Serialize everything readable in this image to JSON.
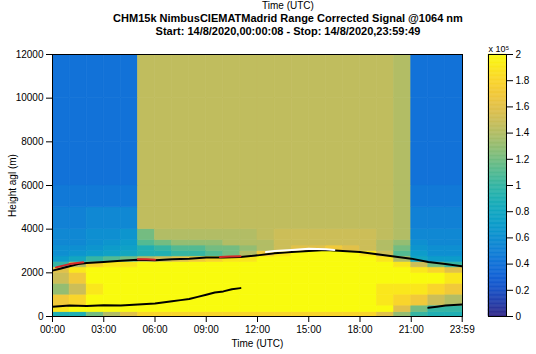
{
  "chart_data": {
    "type": "heatmap",
    "header": "Time (UTC)",
    "title": "CHM15k NimbusCIEMATMadrid Range Corrected Signal @1064 nm",
    "subtitle": "Start: 14/8/2020,00:00:08 - Stop: 14/8/2020,23:59:49",
    "x_label": "Time (UTC)",
    "y_label": "Height agl (m)",
    "xlim": [
      0,
      24
    ],
    "xticks": [
      {
        "value": 0,
        "label": "00:00"
      },
      {
        "value": 3,
        "label": "03:00"
      },
      {
        "value": 6,
        "label": "06:00"
      },
      {
        "value": 9,
        "label": "09:00"
      },
      {
        "value": 12,
        "label": "12:00"
      },
      {
        "value": 15,
        "label": "15:00"
      },
      {
        "value": 18,
        "label": "18:00"
      },
      {
        "value": 21,
        "label": "21:00"
      },
      {
        "value": 23.983,
        "label": "23:59"
      }
    ],
    "ylim": [
      0,
      12000
    ],
    "yticks": [
      0,
      2000,
      4000,
      6000,
      8000,
      10000,
      12000
    ],
    "grid": false,
    "x_edges": [
      0,
      1,
      2,
      3,
      4,
      5,
      6,
      7,
      8,
      9,
      10,
      11,
      12,
      13,
      14,
      15,
      16,
      17,
      18,
      19,
      20,
      21,
      22,
      23,
      24
    ],
    "y_edges": [
      0,
      200,
      500,
      1000,
      1500,
      2000,
      2250,
      2500,
      2750,
      3000,
      3250,
      3500,
      4000,
      5000,
      6000,
      8000,
      10000,
      12000
    ],
    "cells": [
      [
        0.9,
        0.9,
        1.2,
        1.4,
        1.6,
        1.8,
        1.8,
        1.8,
        1.8,
        1.8,
        1.8,
        1.8,
        1.8,
        1.8,
        1.8,
        1.8,
        1.8,
        1.8,
        1.8,
        1.6,
        1.3,
        1.0,
        0.9,
        0.9
      ],
      [
        1.9,
        2.0,
        2.0,
        2.0,
        2.0,
        2.0,
        2.0,
        2.0,
        2.0,
        2.0,
        2.0,
        2.0,
        2.0,
        2.0,
        2.0,
        2.0,
        2.0,
        2.0,
        2.0,
        2.0,
        1.6,
        1.2,
        1.0,
        1.0
      ],
      [
        1.7,
        1.8,
        2.0,
        2.0,
        2.0,
        2.0,
        2.0,
        2.0,
        2.0,
        2.0,
        2.0,
        2.0,
        2.0,
        2.0,
        2.0,
        2.0,
        2.0,
        2.0,
        2.0,
        1.9,
        1.8,
        1.7,
        1.5,
        1.4
      ],
      [
        1.3,
        1.5,
        1.9,
        2.0,
        2.0,
        2.0,
        2.0,
        2.0,
        2.0,
        2.0,
        2.0,
        2.0,
        2.0,
        2.0,
        2.0,
        2.0,
        2.0,
        2.0,
        2.0,
        1.9,
        1.9,
        1.9,
        1.8,
        1.7
      ],
      [
        1.5,
        1.7,
        2.0,
        2.0,
        2.0,
        2.0,
        2.0,
        2.0,
        2.0,
        2.0,
        2.0,
        2.0,
        2.0,
        2.0,
        2.0,
        2.0,
        2.0,
        2.0,
        2.0,
        2.0,
        2.0,
        2.0,
        2.0,
        1.9
      ],
      [
        1.6,
        1.9,
        2.0,
        2.0,
        2.0,
        2.0,
        2.0,
        2.0,
        2.0,
        2.0,
        2.0,
        2.0,
        2.0,
        2.0,
        2.0,
        2.0,
        2.0,
        2.0,
        2.0,
        2.0,
        2.0,
        1.9,
        1.8,
        1.6
      ],
      [
        1.0,
        1.4,
        1.8,
        1.9,
        1.9,
        2.0,
        2.0,
        2.0,
        2.0,
        2.0,
        2.0,
        2.0,
        2.0,
        2.0,
        2.0,
        2.0,
        2.0,
        2.0,
        2.0,
        2.0,
        1.9,
        1.5,
        1.2,
        1.0
      ],
      [
        0.7,
        0.8,
        1.0,
        1.1,
        1.2,
        1.4,
        1.5,
        1.6,
        1.7,
        1.8,
        1.9,
        1.9,
        2.0,
        2.0,
        2.0,
        2.0,
        2.0,
        2.0,
        2.0,
        1.9,
        1.4,
        0.8,
        0.7,
        0.7
      ],
      [
        0.6,
        0.65,
        0.7,
        0.75,
        0.8,
        0.9,
        0.9,
        1.0,
        1.0,
        1.1,
        1.2,
        1.4,
        1.7,
        1.9,
        2.0,
        2.0,
        2.0,
        2.0,
        1.9,
        1.5,
        1.1,
        0.7,
        0.6,
        0.6
      ],
      [
        0.6,
        0.6,
        0.65,
        0.7,
        0.75,
        0.9,
        1.0,
        1.1,
        1.1,
        1.2,
        1.2,
        1.3,
        1.4,
        1.5,
        1.6,
        1.6,
        1.7,
        1.6,
        1.5,
        1.4,
        1.2,
        0.65,
        0.6,
        0.6
      ],
      [
        0.55,
        0.55,
        0.6,
        0.65,
        0.7,
        1.1,
        1.2,
        1.3,
        1.3,
        1.3,
        1.4,
        1.4,
        1.4,
        1.5,
        1.5,
        1.5,
        1.5,
        1.5,
        1.5,
        1.4,
        1.3,
        0.6,
        0.55,
        0.55
      ],
      [
        0.55,
        0.55,
        0.6,
        0.6,
        0.65,
        1.2,
        1.4,
        1.4,
        1.4,
        1.4,
        1.4,
        1.4,
        1.45,
        1.5,
        1.5,
        1.5,
        1.5,
        1.5,
        1.5,
        1.45,
        1.4,
        0.55,
        0.55,
        0.55
      ],
      [
        0.5,
        0.5,
        0.55,
        0.55,
        0.55,
        1.45,
        1.45,
        1.45,
        1.45,
        1.45,
        1.45,
        1.45,
        1.45,
        1.45,
        1.45,
        1.45,
        1.45,
        1.45,
        1.45,
        1.45,
        1.4,
        0.5,
        0.5,
        0.5
      ],
      [
        0.45,
        0.45,
        0.45,
        0.45,
        0.45,
        1.45,
        1.45,
        1.45,
        1.45,
        1.45,
        1.45,
        1.45,
        1.45,
        1.45,
        1.45,
        1.45,
        1.45,
        1.45,
        1.45,
        1.45,
        1.4,
        0.45,
        0.45,
        0.45
      ],
      [
        0.4,
        0.4,
        0.4,
        0.4,
        0.4,
        1.45,
        1.45,
        1.45,
        1.45,
        1.45,
        1.45,
        1.45,
        1.45,
        1.45,
        1.45,
        1.45,
        1.45,
        1.45,
        1.45,
        1.45,
        1.4,
        0.4,
        0.4,
        0.4
      ],
      [
        0.4,
        0.4,
        0.4,
        0.4,
        0.4,
        1.45,
        1.45,
        1.45,
        1.45,
        1.45,
        1.45,
        1.45,
        1.45,
        1.45,
        1.45,
        1.45,
        1.45,
        1.45,
        1.45,
        1.45,
        1.4,
        0.4,
        0.4,
        0.4
      ],
      [
        0.4,
        0.4,
        0.4,
        0.4,
        0.4,
        1.45,
        1.45,
        1.45,
        1.45,
        1.45,
        1.45,
        1.45,
        1.45,
        1.45,
        1.45,
        1.45,
        1.45,
        1.45,
        1.45,
        1.45,
        1.4,
        0.4,
        0.4,
        0.4
      ]
    ],
    "colorbar_lim": [
      0,
      2
    ],
    "colorbar_ticks": [
      0,
      0.2,
      0.4,
      0.6,
      0.8,
      1,
      1.2,
      1.4,
      1.6,
      1.8,
      2
    ],
    "colorbar_label": "x 10⁵",
    "series": [
      {
        "color": "#000000",
        "line_style": "solid",
        "x": [
          0,
          0.5,
          1,
          1.5,
          2,
          3,
          4,
          5,
          6,
          7,
          8,
          9,
          10,
          11,
          12,
          13,
          14,
          15,
          16,
          17,
          18,
          19,
          20,
          21,
          22,
          23,
          23.98
        ],
        "values": [
          2100,
          2200,
          2300,
          2400,
          2450,
          2500,
          2550,
          2600,
          2580,
          2620,
          2650,
          2700,
          2700,
          2720,
          2800,
          2900,
          2950,
          3000,
          3050,
          3000,
          2950,
          2850,
          2750,
          2650,
          2500,
          2400,
          2300
        ]
      },
      {
        "color": "#d62728",
        "line_style": "solid",
        "x": [
          0.2,
          1.0,
          1.8,
          2.0,
          5.0,
          5.5,
          6.0,
          6.2,
          9.8,
          10.4,
          11.0
        ],
        "values": [
          2250,
          2400,
          2480,
          null,
          2620,
          2620,
          2600,
          null,
          2730,
          2750,
          2760
        ]
      },
      {
        "color": "#ffffff",
        "line_style": "solid",
        "x": [
          12.5,
          13,
          14,
          15,
          16,
          16.5
        ],
        "values": [
          2950,
          3000,
          3050,
          3100,
          3080,
          3050
        ]
      },
      {
        "color": "#000000",
        "line_style": "solid",
        "x": [
          0,
          1,
          2,
          3,
          4,
          5,
          6,
          7,
          7.5,
          8,
          8.5,
          9,
          9.5,
          10,
          10.5,
          11,
          11.5,
          22,
          22.5,
          23,
          23.98
        ],
        "values": [
          450,
          500,
          480,
          520,
          500,
          550,
          600,
          700,
          750,
          800,
          900,
          1000,
          1100,
          1150,
          1250,
          1300,
          null,
          400,
          450,
          500,
          550
        ]
      }
    ]
  }
}
